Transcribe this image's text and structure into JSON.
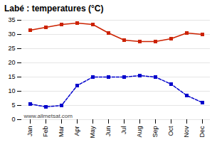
{
  "chart_data": {
    "type": "line",
    "title": "Labé : temperatures (°C)",
    "categories": [
      "Jan",
      "Feb",
      "Mar",
      "Apr",
      "May",
      "Jun",
      "Jul",
      "Aug",
      "Sep",
      "Oct",
      "Nov",
      "Dec"
    ],
    "series": [
      {
        "color": "#cc2200",
        "marker": "square",
        "line_style": "solid",
        "values": [
          31.5,
          32.5,
          33.5,
          34.0,
          33.5,
          30.5,
          28.0,
          27.5,
          27.5,
          28.5,
          30.5,
          30.0
        ]
      },
      {
        "color": "#0000cc",
        "marker": "square",
        "line_style": "dashed",
        "values": [
          5.5,
          4.5,
          5.0,
          12.0,
          15.0,
          15.0,
          15.0,
          15.5,
          15.0,
          12.5,
          8.5,
          6.0
        ]
      }
    ],
    "ylim": [
      0,
      35
    ],
    "yticks": [
      0,
      5,
      10,
      15,
      20,
      25,
      30,
      35
    ],
    "grid": true,
    "annotations": [
      {
        "text": "www.allmetsat.com"
      }
    ]
  }
}
